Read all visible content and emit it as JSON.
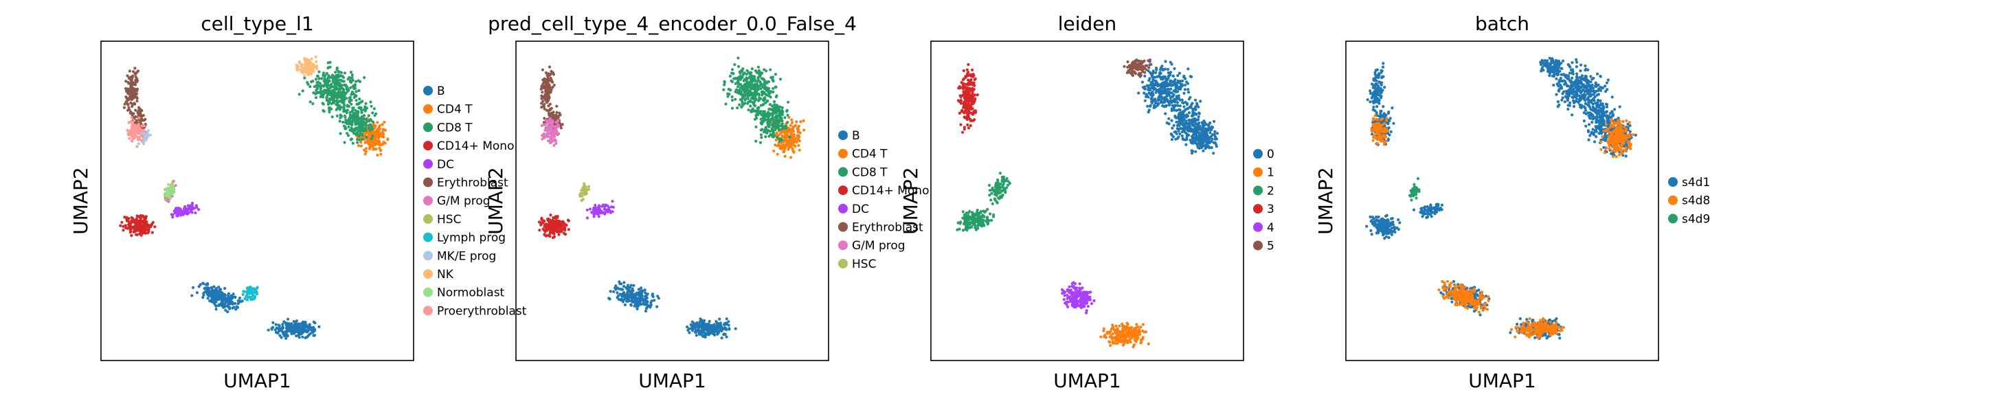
{
  "chart_data": [
    {
      "type": "scatter",
      "title": "cell_type_l1",
      "xlabel": "UMAP1",
      "ylabel": "UMAP2",
      "legend": "right",
      "grid": false,
      "series": [
        {
          "name": "B",
          "color": "#1f77b4"
        },
        {
          "name": "CD4 T",
          "color": "#ff7f0e"
        },
        {
          "name": "CD8 T",
          "color": "#279e68"
        },
        {
          "name": "CD14+ Mono",
          "color": "#d62728"
        },
        {
          "name": "DC",
          "color": "#aa40fc"
        },
        {
          "name": "Erythroblast",
          "color": "#8c564b"
        },
        {
          "name": "G/M prog",
          "color": "#e377c2"
        },
        {
          "name": "HSC",
          "color": "#b5bd61"
        },
        {
          "name": "Lymph prog",
          "color": "#17becf"
        },
        {
          "name": "MK/E prog",
          "color": "#aec7e8"
        },
        {
          "name": "NK",
          "color": "#ffbb78"
        },
        {
          "name": "Normoblast",
          "color": "#98df8a"
        },
        {
          "name": "Proerythroblast",
          "color": "#ff9896"
        }
      ]
    },
    {
      "type": "scatter",
      "title": "pred_cell_type_4_encoder_0.0_False_4",
      "xlabel": "UMAP1",
      "ylabel": "UMAP2",
      "legend": "right",
      "grid": false,
      "series": [
        {
          "name": "B",
          "color": "#1f77b4"
        },
        {
          "name": "CD4 T",
          "color": "#ff7f0e"
        },
        {
          "name": "CD8 T",
          "color": "#279e68"
        },
        {
          "name": "CD14+ Mono",
          "color": "#d62728"
        },
        {
          "name": "DC",
          "color": "#aa40fc"
        },
        {
          "name": "Erythroblast",
          "color": "#8c564b"
        },
        {
          "name": "G/M prog",
          "color": "#e377c2"
        },
        {
          "name": "HSC",
          "color": "#b5bd61"
        }
      ]
    },
    {
      "type": "scatter",
      "title": "leiden",
      "xlabel": "UMAP1",
      "ylabel": "UMAP2",
      "legend": "right",
      "grid": false,
      "series": [
        {
          "name": "0",
          "color": "#1f77b4"
        },
        {
          "name": "1",
          "color": "#ff7f0e"
        },
        {
          "name": "2",
          "color": "#279e68"
        },
        {
          "name": "3",
          "color": "#d62728"
        },
        {
          "name": "4",
          "color": "#aa40fc"
        },
        {
          "name": "5",
          "color": "#8c564b"
        }
      ]
    },
    {
      "type": "scatter",
      "title": "batch",
      "xlabel": "UMAP1",
      "ylabel": "UMAP2",
      "legend": "right",
      "grid": false,
      "series": [
        {
          "name": "s4d1",
          "color": "#1f77b4"
        },
        {
          "name": "s4d8",
          "color": "#ff7f0e"
        },
        {
          "name": "s4d9",
          "color": "#279e68"
        }
      ]
    }
  ]
}
